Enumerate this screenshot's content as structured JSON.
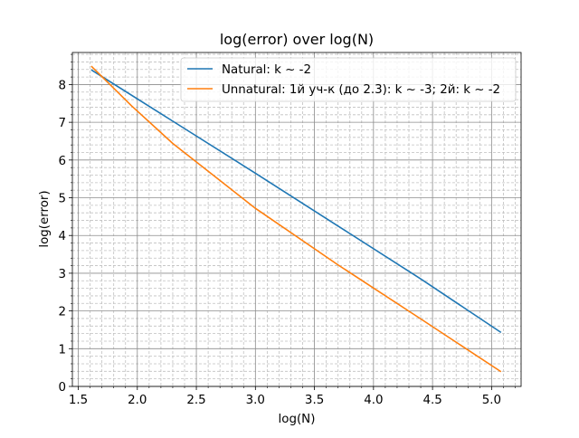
{
  "chart_data": {
    "type": "line",
    "title": "log(error) over log(N)",
    "xlabel": "log(N)",
    "ylabel": "log(error)",
    "xlim": [
      1.45,
      5.25
    ],
    "ylim": [
      0,
      8.85
    ],
    "grid": true,
    "minor_grid": true,
    "legend_position": "top-right",
    "x_ticks": [
      1.5,
      2.0,
      2.5,
      3.0,
      3.5,
      4.0,
      4.5,
      5.0
    ],
    "x_tick_labels": [
      "1.5",
      "2.0",
      "2.5",
      "3.0",
      "3.5",
      "4.0",
      "4.5",
      "5.0"
    ],
    "y_ticks": [
      0,
      1,
      2,
      3,
      4,
      5,
      6,
      7,
      8
    ],
    "y_tick_labels": [
      "0",
      "1",
      "2",
      "3",
      "4",
      "5",
      "6",
      "7",
      "8"
    ],
    "series": [
      {
        "name": "Natural: k ~ -2",
        "color": "#1f77b4",
        "x": [
          1.61,
          2.3,
          3.0,
          3.7,
          4.4,
          5.08
        ],
        "y": [
          8.39,
          7.03,
          5.65,
          4.25,
          2.85,
          1.43
        ]
      },
      {
        "name": "Unnatural: 1й уч-к (до 2.3): k ~ -3; 2й: k ~ -2",
        "color": "#ff7f0e",
        "x": [
          1.61,
          1.95,
          2.3,
          3.0,
          3.7,
          4.4,
          5.08
        ],
        "y": [
          8.49,
          7.44,
          6.44,
          4.72,
          3.22,
          1.79,
          0.39
        ]
      }
    ]
  }
}
